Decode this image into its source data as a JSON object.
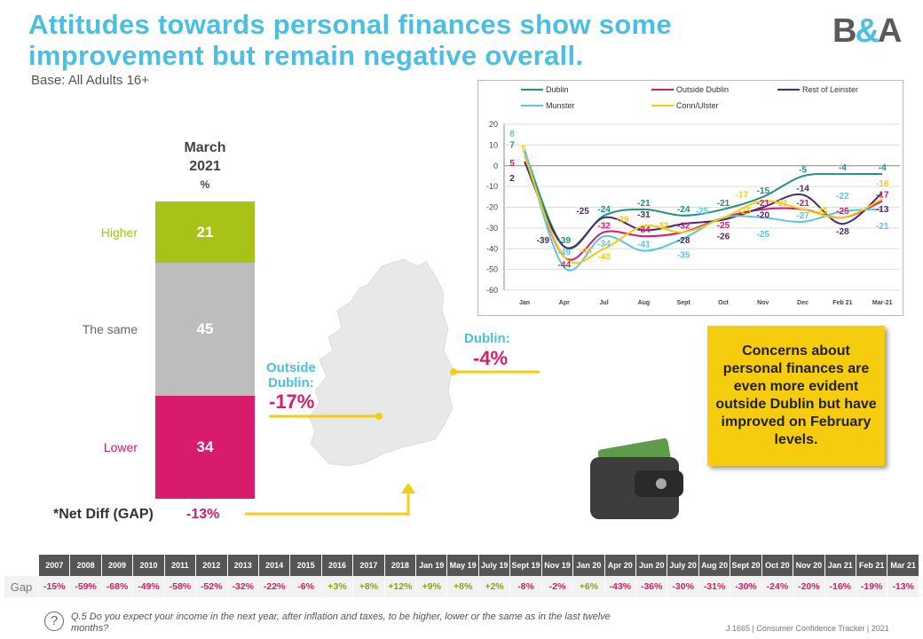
{
  "title_line1": "Attitudes towards personal finances show some",
  "title_line2": "improvement but remain negative overall.",
  "base": "Base: All Adults 16+",
  "logo": {
    "left": "B",
    "amp": "&",
    "right": "A"
  },
  "column": {
    "line1": "March",
    "line2": "2021",
    "unit": "%"
  },
  "segments": [
    {
      "label": "Higher",
      "value": 21,
      "color": "#a8c218"
    },
    {
      "label": "The same",
      "value": 45,
      "color": "#bdbdbd"
    },
    {
      "label": "Lower",
      "value": 34,
      "color": "#d81b6a"
    }
  ],
  "net": {
    "label": "*Net Diff (GAP)",
    "value": "-13%"
  },
  "regions": {
    "dublin_label": "Dublin:",
    "dublin_value": "-4%",
    "outside_label1": "Outside",
    "outside_label2": "Dublin:",
    "outside_value": "-17%"
  },
  "callout": "Concerns about personal finances are even more evident outside Dublin but have improved on February levels.",
  "chart_data": {
    "type": "line",
    "categories": [
      "Jan",
      "Apr",
      "Jul",
      "Aug",
      "Sept",
      "Oct",
      "Nov",
      "Dec",
      "Feb 21",
      "Mar-21"
    ],
    "ylim": [
      -60,
      20
    ],
    "yticks": [
      20,
      10,
      0,
      -10,
      -20,
      -30,
      -40,
      -50,
      -60
    ],
    "legend_position": "top",
    "series": [
      {
        "name": "Dublin",
        "color": "#1f9284",
        "values": [
          7,
          -39,
          -24,
          -21,
          -24,
          -21,
          -15,
          -5,
          -4,
          -4
        ]
      },
      {
        "name": "Outside Dublin",
        "color": "#d81b6a",
        "values": [
          5,
          -44,
          -32,
          -34,
          -32,
          -25,
          -21,
          -21,
          -25,
          -17
        ]
      },
      {
        "name": "Rest of Leinster",
        "color": "#4a2a6a",
        "values": [
          2,
          -39,
          -25,
          -31,
          -28,
          -26,
          -20,
          -14,
          -28,
          -13
        ]
      },
      {
        "name": "Munster",
        "color": "#5bc4e6",
        "values": [
          8,
          -49,
          -34,
          -41,
          -35,
          -25,
          -25,
          -27,
          -22,
          -21
        ]
      },
      {
        "name": "Conn/Ulster",
        "color": "#f6cc0f",
        "values": [
          5,
          -44,
          -40,
          -29,
          -32,
          -25,
          -17,
          -21,
          -25,
          -16
        ]
      }
    ]
  },
  "gap_table": {
    "row_label": "Gap",
    "headers": [
      "2007",
      "2008",
      "2009",
      "2010",
      "2011",
      "2012",
      "2013",
      "2014",
      "2015",
      "2016",
      "2017",
      "2018",
      "Jan 19",
      "May 19",
      "July 19",
      "Sept 19",
      "Nov 19",
      "Jan 20",
      "Apr 20",
      "Jun 20",
      "July 20",
      "Aug 20",
      "Sept 20",
      "Oct 20",
      "Nov 20",
      "Jan 21",
      "Feb 21",
      "Mar 21"
    ],
    "values": [
      "-15%",
      "-59%",
      "-68%",
      "-49%",
      "-58%",
      "-52%",
      "-32%",
      "-22%",
      "-6%",
      "+3%",
      "+8%",
      "+12%",
      "+9%",
      "+8%",
      "+2%",
      "-8%",
      "-2%",
      "+6%",
      "-43%",
      "-36%",
      "-30%",
      "-31%",
      "-30%",
      "-24%",
      "-20%",
      "-16%",
      "-19%",
      "-13%"
    ]
  },
  "question": "Q.5  Do you expect your income in the next year, after inflation and taxes, to be higher, lower or the same as in the last twelve  months?",
  "footer": "J.1665 | Consumer Confidence Tracker |  2021"
}
